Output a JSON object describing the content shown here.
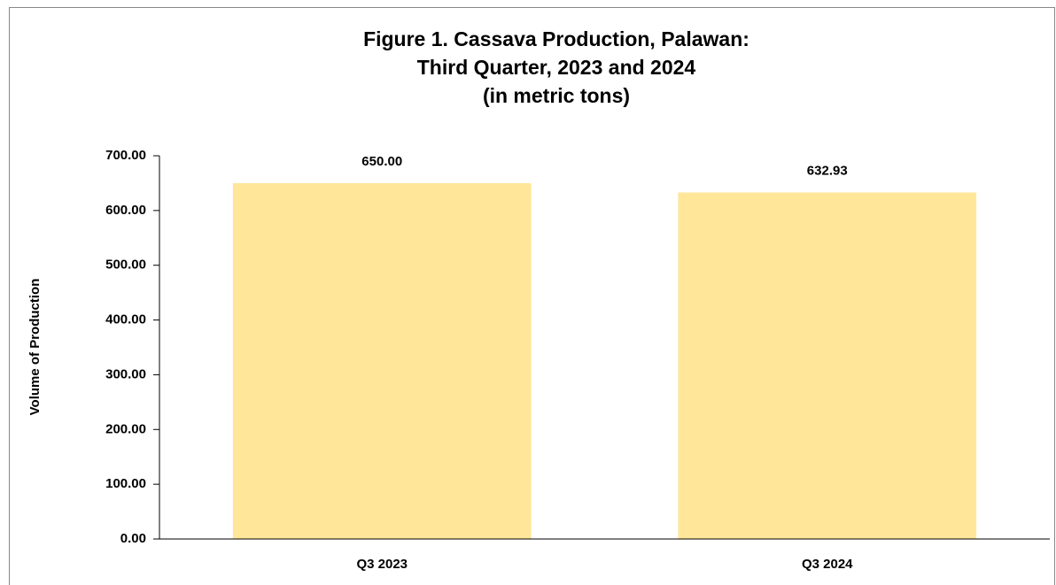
{
  "chart_data": {
    "type": "bar",
    "title": [
      "Figure 1. Cassava Production, Palawan:",
      "Third Quarter, 2023 and 2024",
      "(in metric tons)"
    ],
    "y_label": "Volume of Production",
    "categories": [
      "Q3 2023",
      "Q3 2024"
    ],
    "values": [
      650,
      632.93
    ],
    "value_labels": [
      "650.00",
      "632.93"
    ],
    "color": "#ffe699",
    "ylim": [
      0,
      700
    ],
    "yticks": [
      {
        "value": 0,
        "label": "0.00"
      },
      {
        "value": 100,
        "label": "100.00"
      },
      {
        "value": 200,
        "label": "200.00"
      },
      {
        "value": 300,
        "label": "300.00"
      },
      {
        "value": 400,
        "label": "400.00"
      },
      {
        "value": 500,
        "label": "500.00"
      },
      {
        "value": 600,
        "label": "600.00"
      },
      {
        "value": 700,
        "label": "700.00"
      }
    ],
    "grid": false
  }
}
